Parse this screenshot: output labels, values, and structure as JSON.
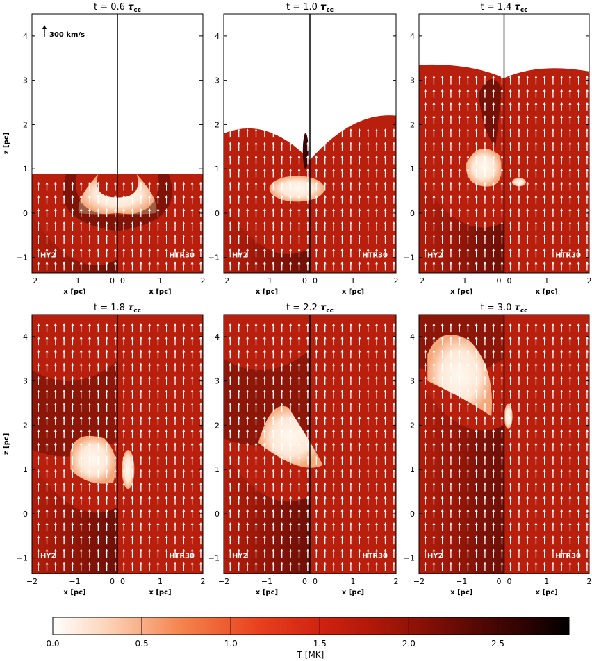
{
  "panels": [
    {
      "time": "0.6",
      "left_label": "HY2",
      "right_label": "HTR30"
    },
    {
      "time": "1.0",
      "left_label": "HY2",
      "right_label": "HTR30"
    },
    {
      "time": "1.4",
      "left_label": "HY2",
      "right_label": "HTR30"
    },
    {
      "time": "1.8",
      "left_label": "HY2",
      "right_label": "HTR30"
    },
    {
      "time": "2.2",
      "left_label": "HY2",
      "right_label": "HTR30"
    },
    {
      "time": "3.0",
      "left_label": "HY2",
      "right_label": "HTR30"
    }
  ],
  "title_prefix": "t = ",
  "title_symbol": "τ",
  "title_subscript": "cc",
  "xlabel": "x [pc]",
  "ylabel": "z [pc]",
  "x_ticks": [
    "−2",
    "−1",
    "0",
    "0",
    "1",
    "2"
  ],
  "y_ticks": [
    "−1",
    "0",
    "1",
    "2",
    "3",
    "4"
  ],
  "velocity_scale_label": "300 km/s",
  "colorbar": {
    "label": "T [MK]",
    "ticks": [
      "0.0",
      "0.5",
      "1.0",
      "1.5",
      "2.0",
      "2.5"
    ],
    "range": [
      0,
      2.9
    ]
  },
  "colors": {
    "background": "#b81f0c",
    "hot_dark": "#3a0503",
    "cold_white": "#fff4ea",
    "arrow": "#ffffff"
  }
}
